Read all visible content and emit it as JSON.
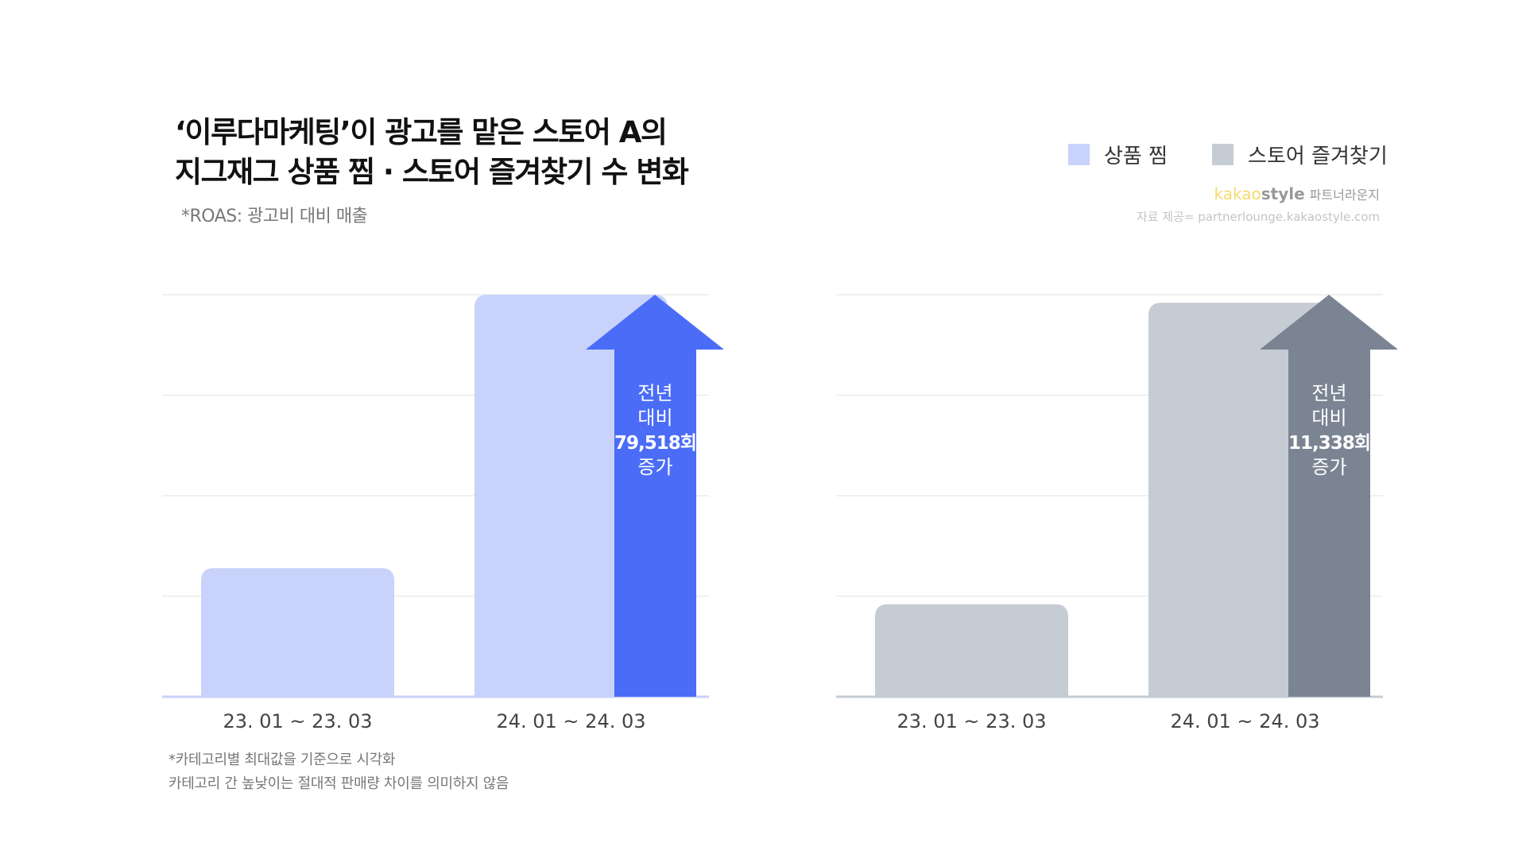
{
  "header": {
    "title_line1": "‘이루다마케팅’이 광고를 맡은 스토어 A의",
    "title_line2": "지그재그 상품 찜 · 스토어 즐겨찾기 수 변화",
    "subtitle": "*ROAS: 광고비 대비 매출"
  },
  "legend": [
    {
      "label": "상품 찜",
      "color": "#c9d2fb"
    },
    {
      "label": "스토어 즐겨찾기",
      "color": "#c6ccd4"
    }
  ],
  "brand": {
    "kakao": "kakao",
    "style": "style",
    "partner": "파트너라운지",
    "source": "자료 제공= partnerlounge.kakaostyle.com"
  },
  "notes": {
    "line1": "*카테고리별 최대값을 기준으로 시각화",
    "line2": "카테고리 간 높낮이는 절대적 판매량 차이를 의미하지 않음"
  },
  "chart_data": [
    {
      "type": "bar",
      "series_name": "상품 찜",
      "categories": [
        "23. 01 ~ 23. 03",
        "24. 01 ~ 24. 03"
      ],
      "values": [
        0.32,
        1.0
      ],
      "value_scale": "relative to category max",
      "ylim": [
        0,
        1
      ],
      "grid": true,
      "bar_color": "#c9d2fb",
      "annotation": {
        "lines": [
          "전년",
          "대비",
          "79,518회",
          "증가"
        ],
        "increase": 79518,
        "arrow_color": "#4a6cf7"
      }
    },
    {
      "type": "bar",
      "series_name": "스토어 즐겨찾기",
      "categories": [
        "23. 01 ~ 23. 03",
        "24. 01 ~ 24. 03"
      ],
      "values": [
        0.23,
        0.98
      ],
      "value_scale": "relative to category max",
      "ylim": [
        0,
        1
      ],
      "grid": true,
      "bar_color": "#c6ccd4",
      "annotation": {
        "lines": [
          "전년",
          "대비",
          "11,338회",
          "증가"
        ],
        "increase": 11338,
        "arrow_color": "#7a8493"
      }
    }
  ]
}
